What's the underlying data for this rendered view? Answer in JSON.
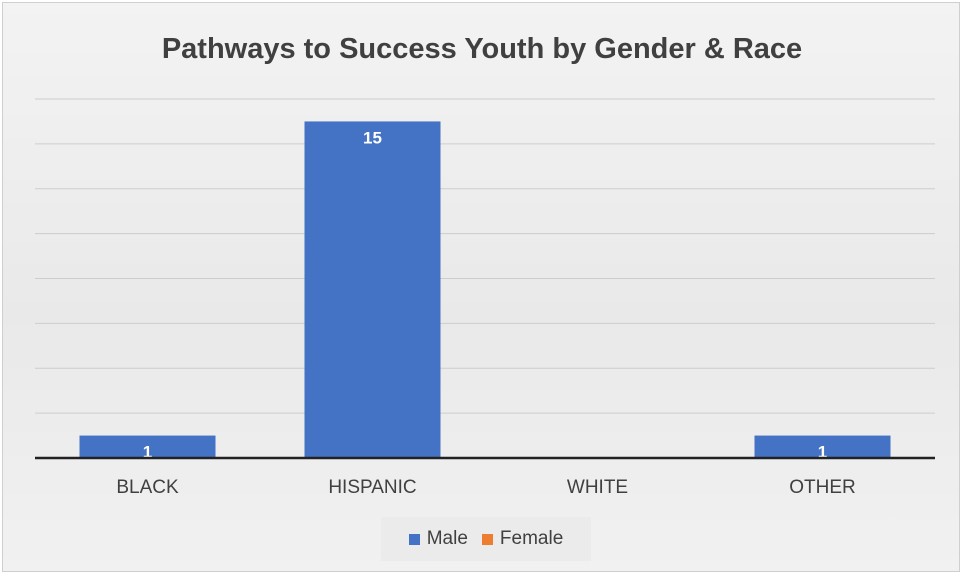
{
  "chart_data": {
    "type": "bar",
    "title": "Pathways to Success Youth by Gender & Race",
    "categories": [
      "BLACK",
      "HISPANIC",
      "WHITE",
      "OTHER"
    ],
    "series": [
      {
        "name": "Male",
        "color": "#4472c4",
        "values": [
          1,
          15,
          null,
          1
        ]
      },
      {
        "name": "Female",
        "color": "#ed7d31",
        "values": [
          null,
          null,
          null,
          null
        ]
      }
    ],
    "ylim": [
      0,
      16
    ],
    "grid": true,
    "legend": "bottom",
    "data_labels": true
  }
}
